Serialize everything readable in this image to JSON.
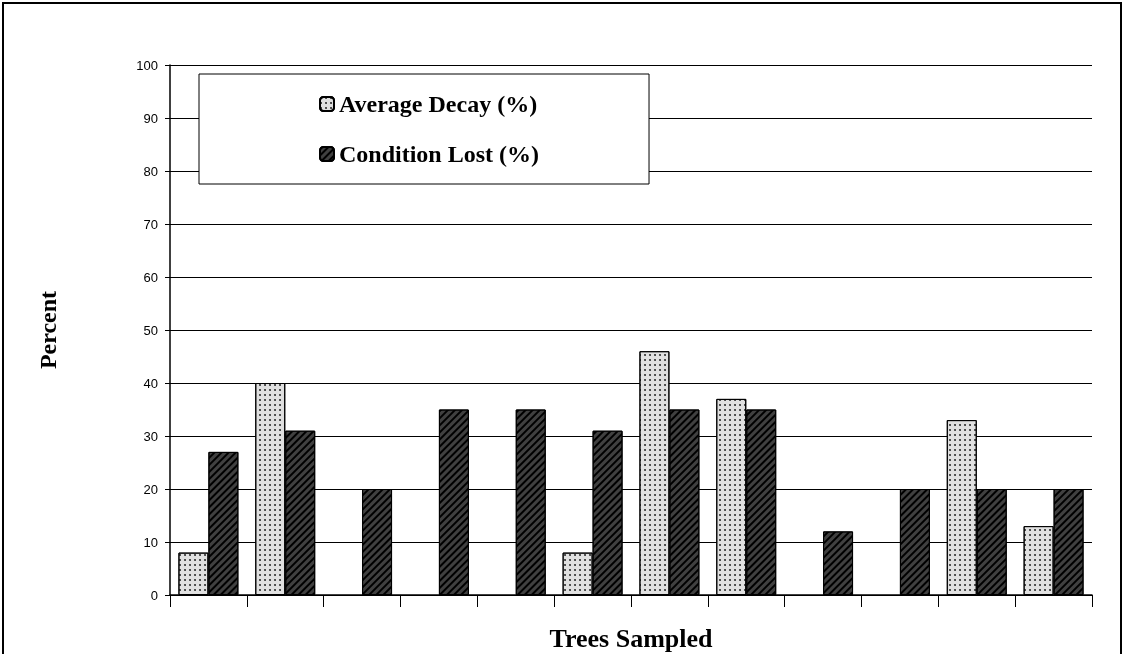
{
  "chart_data": {
    "type": "bar",
    "xlabel": "Trees Sampled",
    "ylabel": "Percent",
    "categories": [
      null,
      null,
      null,
      null,
      null,
      null,
      null,
      null,
      null,
      null,
      null,
      null
    ],
    "series": [
      {
        "name": "Average Decay (%)",
        "color": "#e0e0e0",
        "values": [
          8,
          40,
          null,
          null,
          null,
          8,
          46,
          37,
          null,
          null,
          33,
          13
        ]
      },
      {
        "name": "Condition Lost (%)",
        "color": "#404040",
        "values": [
          27,
          31,
          20,
          35,
          35,
          31,
          35,
          35,
          12,
          20,
          20,
          20
        ]
      }
    ],
    "ylim": [
      0,
      100
    ],
    "yticks": [
      0,
      10,
      20,
      30,
      40,
      50,
      60,
      70,
      80,
      90,
      100
    ],
    "grid": "y",
    "legend": "top left"
  }
}
